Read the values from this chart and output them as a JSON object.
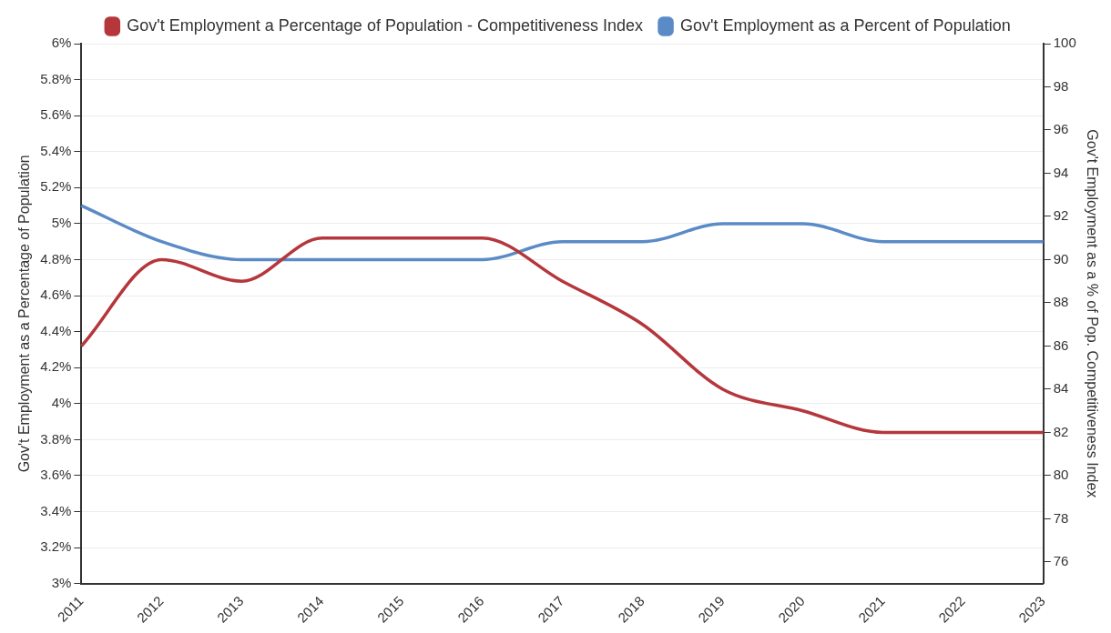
{
  "chart_data": {
    "type": "line",
    "categories": [
      "2011",
      "2012",
      "2013",
      "2014",
      "2015",
      "2016",
      "2017",
      "2018",
      "2019",
      "2020",
      "2021",
      "2022",
      "2023"
    ],
    "series": [
      {
        "name": "Gov't Employment a Percentage of Population - Competitiveness Index",
        "color": "#b5373c",
        "axis": "y2",
        "values": [
          86,
          90,
          89,
          91,
          91,
          91,
          89,
          87,
          84,
          83,
          82,
          82,
          82
        ]
      },
      {
        "name": "Gov't Employment as a Percent of Population",
        "color": "#5b8bc6",
        "values": [
          5.1,
          4.9,
          4.8,
          4.8,
          4.8,
          4.8,
          4.9,
          4.9,
          5.0,
          5.0,
          4.9,
          4.9,
          4.9
        ]
      }
    ],
    "ylabel": "Gov't Employment as a Percentage of Population",
    "y2label": "Gov't Employment as a % of Pop. Competitiveness Index",
    "ylim": [
      3,
      6
    ],
    "yticks": [
      {
        "value": 3,
        "label": "3%"
      },
      {
        "value": 3.2,
        "label": "3.2%"
      },
      {
        "value": 3.4,
        "label": "3.4%"
      },
      {
        "value": 3.6,
        "label": "3.6%"
      },
      {
        "value": 3.8,
        "label": "3.8%"
      },
      {
        "value": 4,
        "label": "4%"
      },
      {
        "value": 4.2,
        "label": "4.2%"
      },
      {
        "value": 4.4,
        "label": "4.4%"
      },
      {
        "value": 4.6,
        "label": "4.6%"
      },
      {
        "value": 4.8,
        "label": "4.8%"
      },
      {
        "value": 5,
        "label": "5%"
      },
      {
        "value": 5.2,
        "label": "5.2%"
      },
      {
        "value": 5.4,
        "label": "5.4%"
      },
      {
        "value": 5.6,
        "label": "5.6%"
      },
      {
        "value": 5.8,
        "label": "5.8%"
      },
      {
        "value": 6,
        "label": "6%"
      }
    ],
    "y2lim": [
      75,
      100
    ],
    "y2ticks": [
      76,
      78,
      80,
      82,
      84,
      86,
      88,
      90,
      92,
      94,
      96,
      98,
      100
    ],
    "grid": "y",
    "legend": "top",
    "marker": "none",
    "line_style": "solid"
  }
}
